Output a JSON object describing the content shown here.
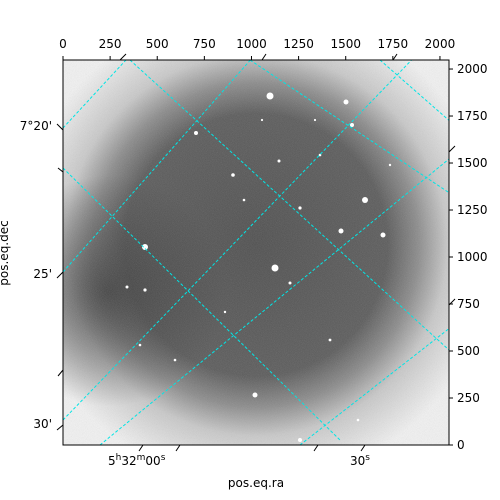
{
  "figure": {
    "image_description": "astronomical grayscale field with bright stars and darker vignetting",
    "x_axis_title": "pos.eq.ra",
    "y_axis_title": "pos.eq.dec",
    "pixel_axes": {
      "x_range": [
        0,
        2048
      ],
      "y_range": [
        0,
        2048
      ],
      "x_ticks": [
        0,
        250,
        500,
        750,
        1000,
        1250,
        1500,
        1750,
        2000
      ],
      "y_ticks": [
        0,
        250,
        500,
        750,
        1000,
        1250,
        1500,
        1750,
        2000
      ]
    },
    "world_ticks": {
      "ra_bottom": {
        "label_1_pre": "5",
        "label_1_h": "h",
        "label_1_mid": "32",
        "label_1_m": "m",
        "label_1_post": "00",
        "label_1_s": "s",
        "label_2_pre": "30",
        "label_2_s": "s"
      },
      "dec_left": [
        "7°20'",
        "25'",
        "30'"
      ]
    },
    "grid_color": "#00e5e5",
    "background_color": "#ffffff"
  }
}
